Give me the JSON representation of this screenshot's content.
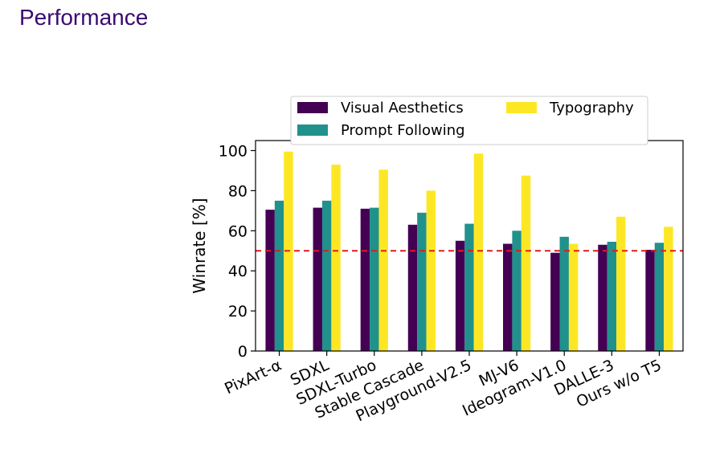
{
  "page": {
    "title": "Performance"
  },
  "colors": {
    "title": "#3a0a6e",
    "visual": "#440154",
    "prompt": "#21918c",
    "typo": "#fde725",
    "baseline": "#e31a1c"
  },
  "chart_data": {
    "type": "bar",
    "title": "",
    "xlabel": "",
    "ylabel": "Winrate [%]",
    "ylim": [
      0,
      105
    ],
    "yticks": [
      0,
      20,
      40,
      60,
      80,
      100
    ],
    "grid": false,
    "legend_position": "top",
    "baseline": 50,
    "categories": [
      "PixArt-α",
      "SDXL",
      "SDXL-Turbo",
      "Stable Cascade",
      "Playground-V2.5",
      "MJ-V6",
      "Ideogram-V1.0",
      "DALLE-3",
      "Ours w/o T5"
    ],
    "series": [
      {
        "name": "Visual Aesthetics",
        "color": "#440154",
        "values": [
          70.5,
          71.5,
          71.0,
          63.0,
          55.0,
          53.5,
          49.0,
          53.0,
          50.5
        ]
      },
      {
        "name": "Prompt Following",
        "color": "#21918c",
        "values": [
          75.0,
          75.0,
          71.5,
          69.0,
          63.5,
          60.0,
          57.0,
          54.5,
          54.0
        ]
      },
      {
        "name": "Typography",
        "color": "#fde725",
        "values": [
          99.5,
          93.0,
          90.5,
          80.0,
          98.5,
          87.5,
          53.5,
          67.0,
          62.0
        ]
      }
    ]
  }
}
